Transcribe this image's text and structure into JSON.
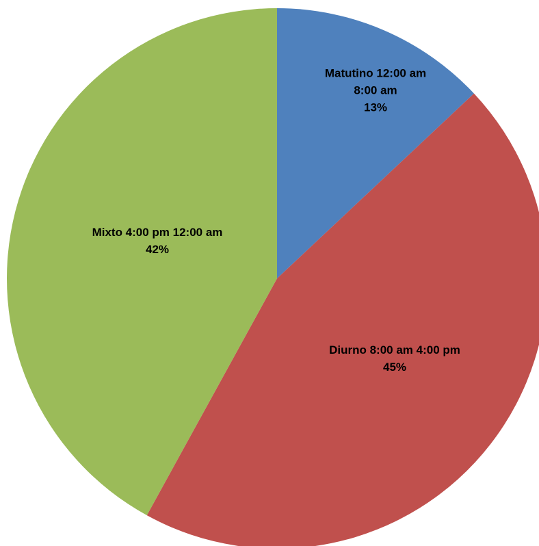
{
  "chart_data": {
    "type": "pie",
    "title": "",
    "start_angle_deg": 0,
    "direction": "clockwise",
    "legend": "none",
    "slices": [
      {
        "category": "Matutino 12:00 am 8:00 am",
        "label_lines": [
          "Matutino 12:00 am",
          "8:00 am"
        ],
        "value": 13,
        "percent_label": "13%",
        "color": "#4F81BD"
      },
      {
        "category": "Diurno 8:00 am 4:00 pm",
        "label_lines": [
          "Diurno 8:00 am 4:00 pm"
        ],
        "value": 45,
        "percent_label": "45%",
        "color": "#C0504D"
      },
      {
        "category": "Mixto 4:00 pm 12:00 am",
        "label_lines": [
          "Mixto 4:00 pm 12:00 am"
        ],
        "value": 42,
        "percent_label": "42%",
        "color": "#9BBB59"
      }
    ]
  }
}
